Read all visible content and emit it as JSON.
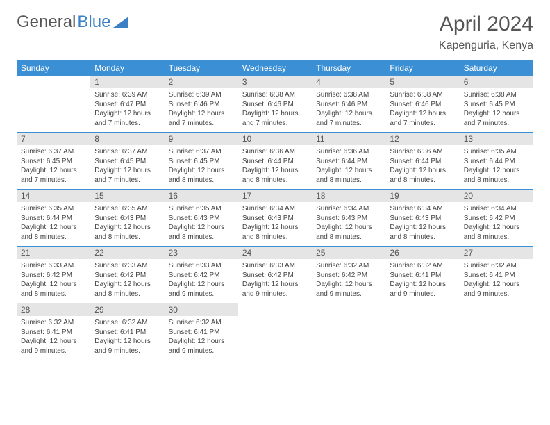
{
  "logo": {
    "text1": "General",
    "text2": "Blue"
  },
  "title": "April 2024",
  "location": "Kapenguria, Kenya",
  "colors": {
    "header_bg": "#3b8fd4",
    "header_text": "#ffffff",
    "daynum_bg": "#e5e5e5",
    "text": "#444444",
    "border": "#3b8fd4"
  },
  "day_names": [
    "Sunday",
    "Monday",
    "Tuesday",
    "Wednesday",
    "Thursday",
    "Friday",
    "Saturday"
  ],
  "weeks": [
    [
      {
        "blank": true
      },
      {
        "n": "1",
        "sr": "6:39 AM",
        "ss": "6:47 PM",
        "dl": "12 hours and 7 minutes."
      },
      {
        "n": "2",
        "sr": "6:39 AM",
        "ss": "6:46 PM",
        "dl": "12 hours and 7 minutes."
      },
      {
        "n": "3",
        "sr": "6:38 AM",
        "ss": "6:46 PM",
        "dl": "12 hours and 7 minutes."
      },
      {
        "n": "4",
        "sr": "6:38 AM",
        "ss": "6:46 PM",
        "dl": "12 hours and 7 minutes."
      },
      {
        "n": "5",
        "sr": "6:38 AM",
        "ss": "6:46 PM",
        "dl": "12 hours and 7 minutes."
      },
      {
        "n": "6",
        "sr": "6:38 AM",
        "ss": "6:45 PM",
        "dl": "12 hours and 7 minutes."
      }
    ],
    [
      {
        "n": "7",
        "sr": "6:37 AM",
        "ss": "6:45 PM",
        "dl": "12 hours and 7 minutes."
      },
      {
        "n": "8",
        "sr": "6:37 AM",
        "ss": "6:45 PM",
        "dl": "12 hours and 7 minutes."
      },
      {
        "n": "9",
        "sr": "6:37 AM",
        "ss": "6:45 PM",
        "dl": "12 hours and 8 minutes."
      },
      {
        "n": "10",
        "sr": "6:36 AM",
        "ss": "6:44 PM",
        "dl": "12 hours and 8 minutes."
      },
      {
        "n": "11",
        "sr": "6:36 AM",
        "ss": "6:44 PM",
        "dl": "12 hours and 8 minutes."
      },
      {
        "n": "12",
        "sr": "6:36 AM",
        "ss": "6:44 PM",
        "dl": "12 hours and 8 minutes."
      },
      {
        "n": "13",
        "sr": "6:35 AM",
        "ss": "6:44 PM",
        "dl": "12 hours and 8 minutes."
      }
    ],
    [
      {
        "n": "14",
        "sr": "6:35 AM",
        "ss": "6:44 PM",
        "dl": "12 hours and 8 minutes."
      },
      {
        "n": "15",
        "sr": "6:35 AM",
        "ss": "6:43 PM",
        "dl": "12 hours and 8 minutes."
      },
      {
        "n": "16",
        "sr": "6:35 AM",
        "ss": "6:43 PM",
        "dl": "12 hours and 8 minutes."
      },
      {
        "n": "17",
        "sr": "6:34 AM",
        "ss": "6:43 PM",
        "dl": "12 hours and 8 minutes."
      },
      {
        "n": "18",
        "sr": "6:34 AM",
        "ss": "6:43 PM",
        "dl": "12 hours and 8 minutes."
      },
      {
        "n": "19",
        "sr": "6:34 AM",
        "ss": "6:43 PM",
        "dl": "12 hours and 8 minutes."
      },
      {
        "n": "20",
        "sr": "6:34 AM",
        "ss": "6:42 PM",
        "dl": "12 hours and 8 minutes."
      }
    ],
    [
      {
        "n": "21",
        "sr": "6:33 AM",
        "ss": "6:42 PM",
        "dl": "12 hours and 8 minutes."
      },
      {
        "n": "22",
        "sr": "6:33 AM",
        "ss": "6:42 PM",
        "dl": "12 hours and 8 minutes."
      },
      {
        "n": "23",
        "sr": "6:33 AM",
        "ss": "6:42 PM",
        "dl": "12 hours and 9 minutes."
      },
      {
        "n": "24",
        "sr": "6:33 AM",
        "ss": "6:42 PM",
        "dl": "12 hours and 9 minutes."
      },
      {
        "n": "25",
        "sr": "6:32 AM",
        "ss": "6:42 PM",
        "dl": "12 hours and 9 minutes."
      },
      {
        "n": "26",
        "sr": "6:32 AM",
        "ss": "6:41 PM",
        "dl": "12 hours and 9 minutes."
      },
      {
        "n": "27",
        "sr": "6:32 AM",
        "ss": "6:41 PM",
        "dl": "12 hours and 9 minutes."
      }
    ],
    [
      {
        "n": "28",
        "sr": "6:32 AM",
        "ss": "6:41 PM",
        "dl": "12 hours and 9 minutes."
      },
      {
        "n": "29",
        "sr": "6:32 AM",
        "ss": "6:41 PM",
        "dl": "12 hours and 9 minutes."
      },
      {
        "n": "30",
        "sr": "6:32 AM",
        "ss": "6:41 PM",
        "dl": "12 hours and 9 minutes."
      },
      {
        "blank": true
      },
      {
        "blank": true
      },
      {
        "blank": true
      },
      {
        "blank": true
      }
    ]
  ],
  "labels": {
    "sunrise": "Sunrise: ",
    "sunset": "Sunset: ",
    "daylight": "Daylight: "
  }
}
